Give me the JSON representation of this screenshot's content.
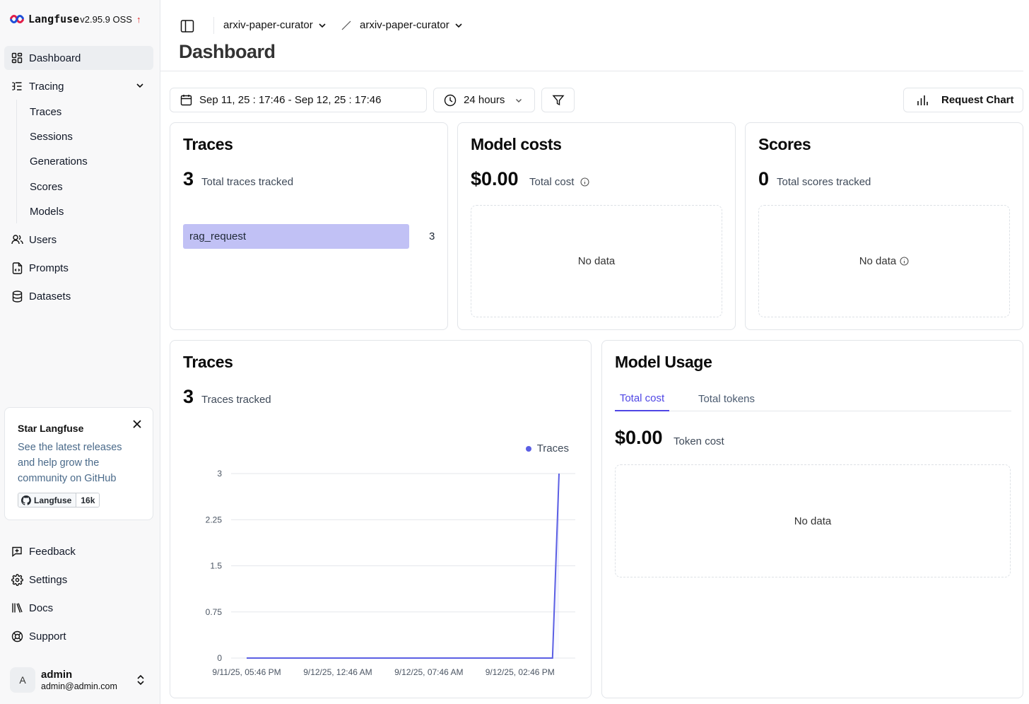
{
  "app": {
    "name": "Langfuse",
    "version": "v2.95.9 OSS",
    "update_arrow": "↑"
  },
  "sidebar": {
    "items": [
      {
        "label": "Dashboard",
        "icon": "dashboard-icon",
        "active": true
      },
      {
        "label": "Tracing",
        "icon": "tracing-icon",
        "expanded": true
      },
      {
        "label": "Users",
        "icon": "users-icon"
      },
      {
        "label": "Prompts",
        "icon": "prompts-icon"
      },
      {
        "label": "Datasets",
        "icon": "database-icon"
      }
    ],
    "tracing_sub": [
      "Traces",
      "Sessions",
      "Generations",
      "Scores",
      "Models"
    ],
    "bottom_items": [
      {
        "label": "Feedback",
        "icon": "feedback-icon"
      },
      {
        "label": "Settings",
        "icon": "gear-icon"
      },
      {
        "label": "Docs",
        "icon": "docs-icon"
      },
      {
        "label": "Support",
        "icon": "support-icon"
      }
    ],
    "star_card": {
      "title": "Star Langfuse",
      "description": "See the latest releases and help grow the community on GitHub",
      "badge_label": "Langfuse",
      "badge_count": "16k"
    },
    "user": {
      "initial": "A",
      "name": "admin",
      "email": "admin@admin.com"
    }
  },
  "header": {
    "breadcrumb_org": "arxiv-paper-curator",
    "breadcrumb_project": "arxiv-paper-curator",
    "title": "Dashboard"
  },
  "toolbar": {
    "date_range": "Sep 11, 25 : 17:46 - Sep 12, 25 : 17:46",
    "time_preset": "24 hours",
    "request_chart": "Request Chart"
  },
  "cards": {
    "traces": {
      "title": "Traces",
      "count": "3",
      "subtitle": "Total traces tracked",
      "bars": [
        {
          "name": "rag_request",
          "value": 3
        }
      ]
    },
    "model_costs": {
      "title": "Model costs",
      "amount": "$0.00",
      "subtitle": "Total cost",
      "empty": "No data"
    },
    "scores": {
      "title": "Scores",
      "count": "0",
      "subtitle": "Total scores tracked",
      "empty": "No data"
    },
    "traces_chart": {
      "title": "Traces",
      "count": "3",
      "subtitle": "Traces tracked",
      "legend": "Traces"
    },
    "model_usage": {
      "title": "Model Usage",
      "tabs": [
        "Total cost",
        "Total tokens"
      ],
      "active_tab": "Total cost",
      "amount": "$0.00",
      "subtitle": "Token cost",
      "empty": "No data"
    }
  },
  "colors": {
    "accent": "#4f46e5",
    "line": "#5b5fe4",
    "bar": "#c1c1f5",
    "brand_red": "#dc2626"
  },
  "chart_data": {
    "type": "line",
    "series": [
      {
        "name": "Traces",
        "x": [
          "9/11/25, 05:46 PM",
          "9/12/25, 05:16 PM",
          "9/12/25, 05:46 PM"
        ],
        "values": [
          0,
          0,
          3
        ]
      }
    ],
    "x_tick_labels": [
      "9/11/25, 05:46 PM",
      "9/12/25, 12:46 AM",
      "9/12/25, 07:46 AM",
      "9/12/25, 02:46 PM"
    ],
    "y_ticks": [
      0,
      0.75,
      1.5,
      2.25,
      3
    ],
    "y_tick_labels": [
      "0",
      "0.75",
      "1.5",
      "2.25",
      "3"
    ],
    "ylim": [
      0,
      3
    ],
    "legend": "top-right",
    "grid": true
  }
}
